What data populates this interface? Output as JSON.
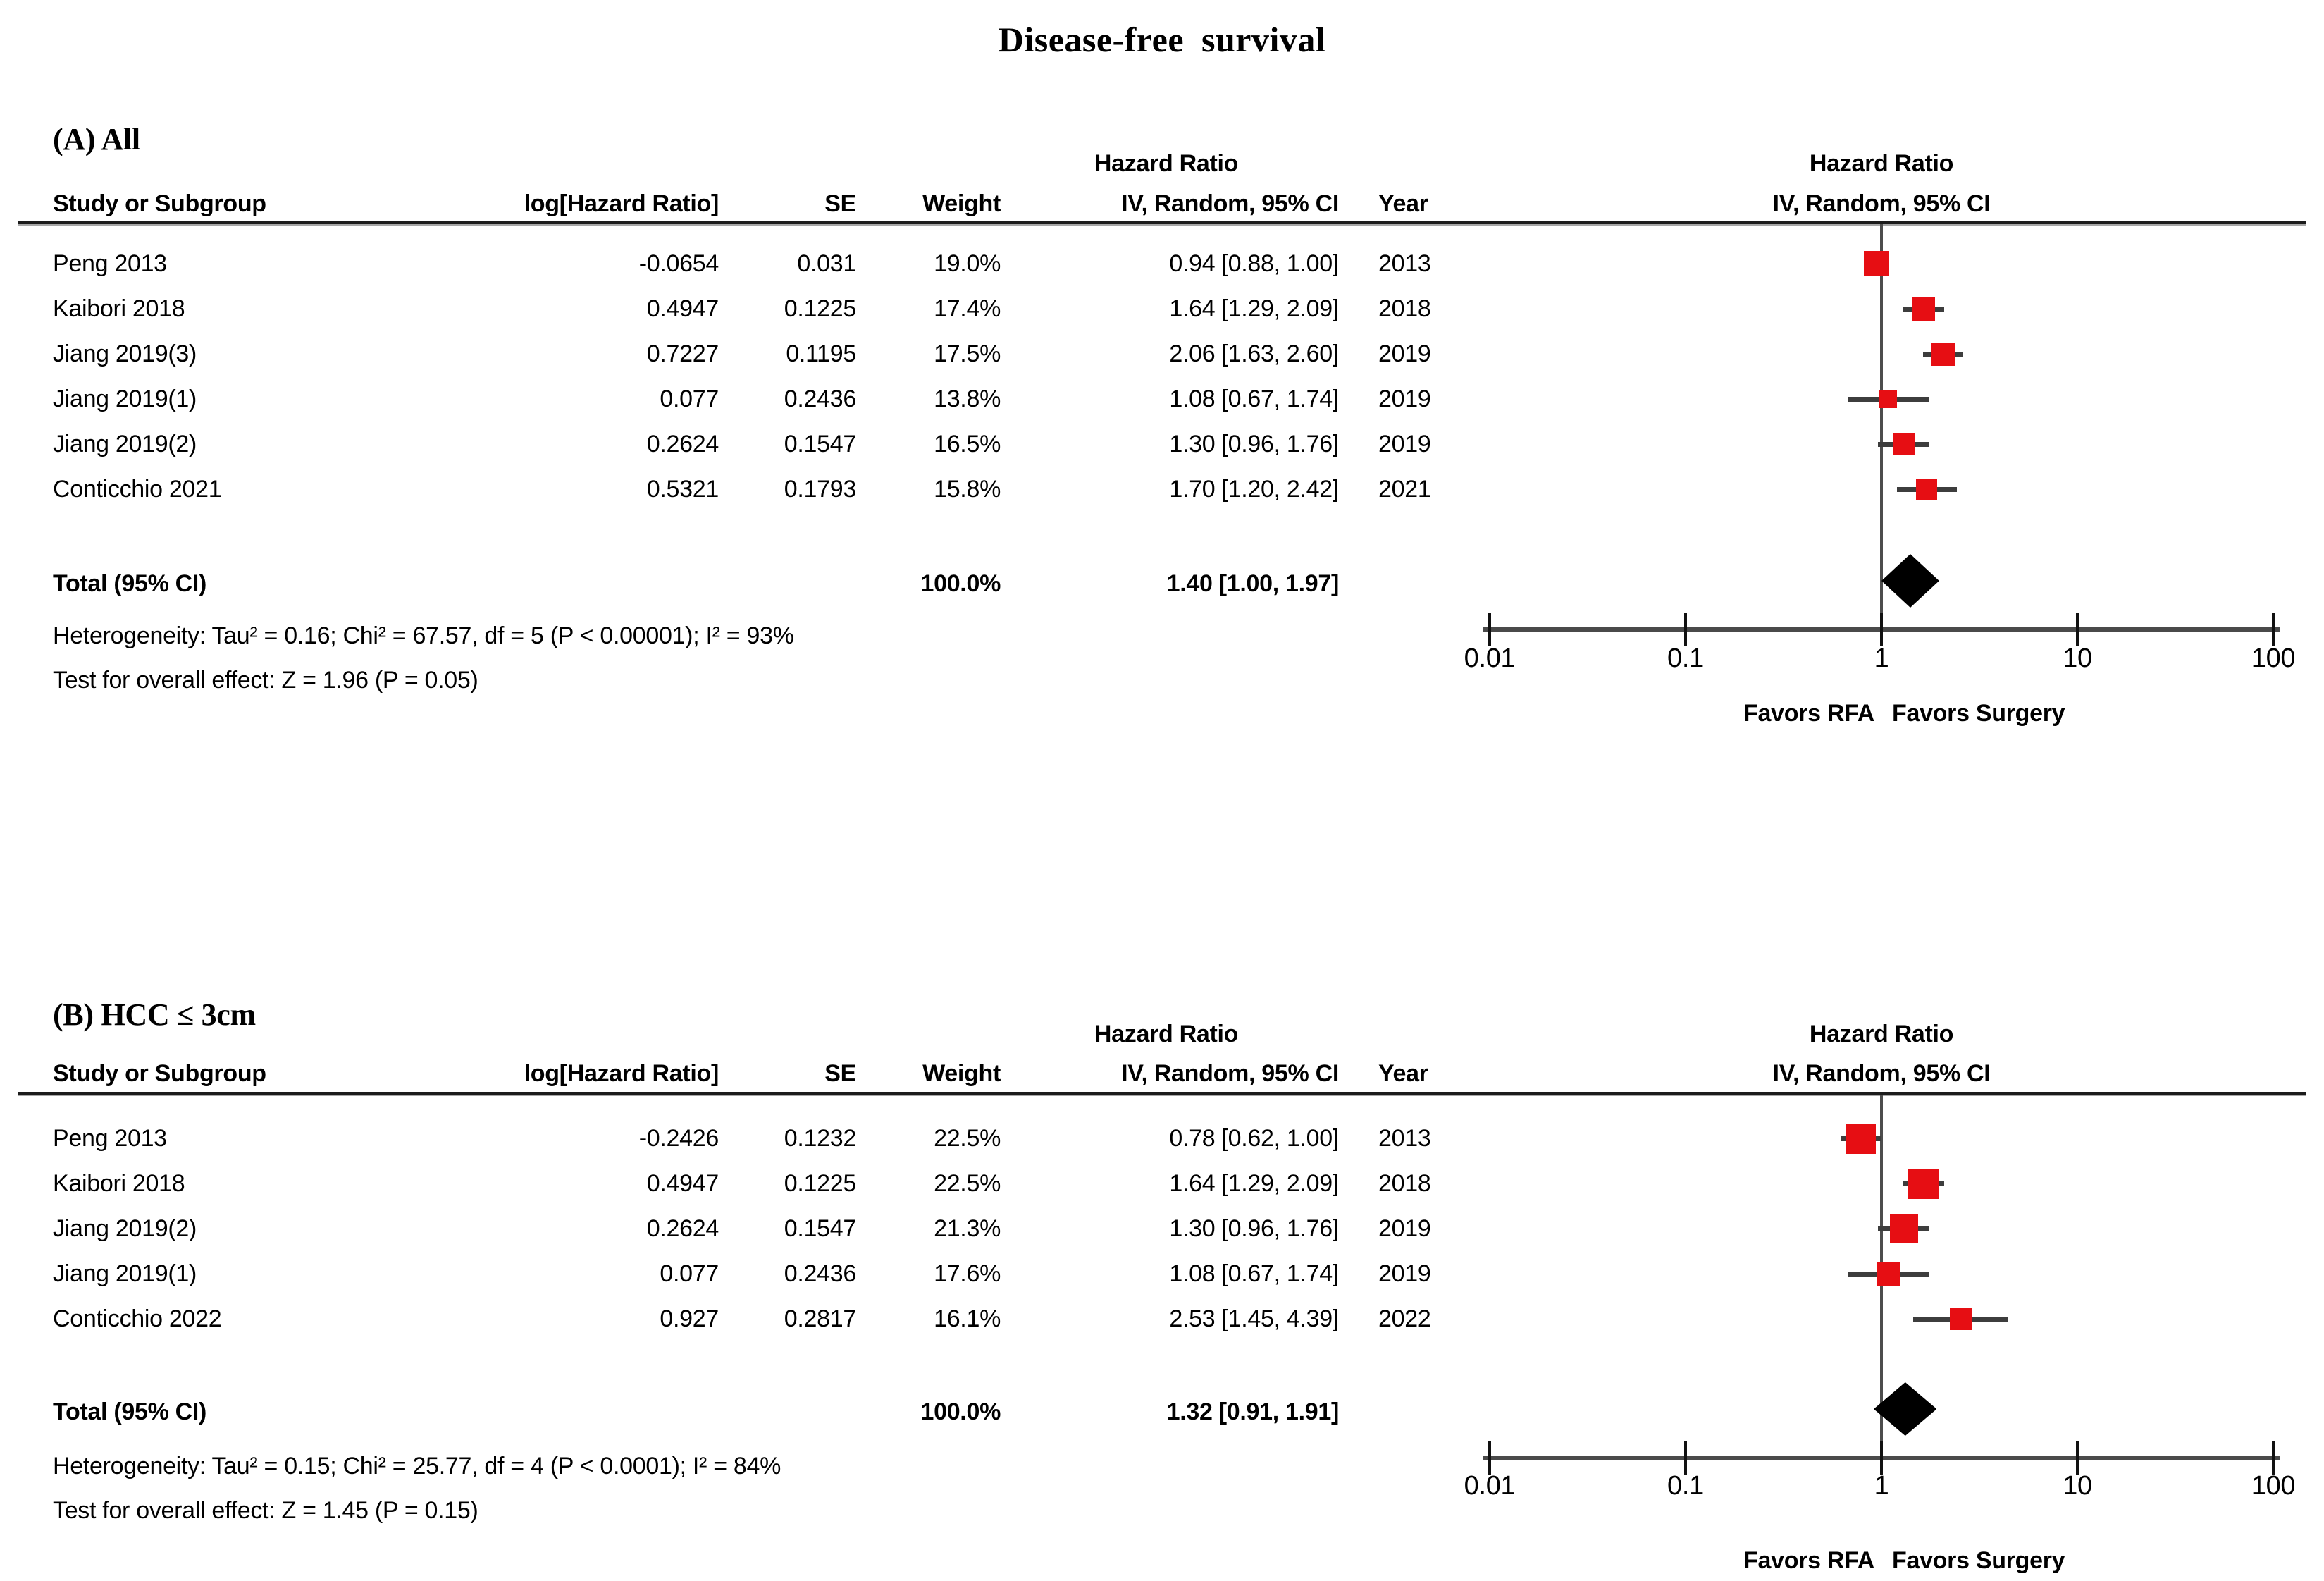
{
  "title": "Disease-free survival",
  "colors": {
    "marker_red": "#e60e13",
    "ci_line": "#3d3d3d",
    "axis": "#4a4a4a",
    "diamond": "#000000",
    "text": "#000000"
  },
  "panels": [
    {
      "label": "(A) All",
      "table_headers": {
        "group": "Hazard Ratio",
        "study": "Study or Subgroup",
        "log_hr": "log[Hazard Ratio]",
        "se": "SE",
        "weight": "Weight",
        "ci": "IV, Random, 95% CI",
        "year": "Year",
        "plot_group": "Hazard Ratio",
        "plot_sub": "IV, Random, 95% CI"
      },
      "studies": [
        {
          "name": "Peng 2013",
          "log_hr": "-0.0654",
          "se": "0.031",
          "weight": "19.0%",
          "ci_text": "0.94 [0.88, 1.00]",
          "year": "2013"
        },
        {
          "name": "Kaibori 2018",
          "log_hr": "0.4947",
          "se": "0.1225",
          "weight": "17.4%",
          "ci_text": "1.64 [1.29, 2.09]",
          "year": "2018"
        },
        {
          "name": "Jiang 2019(3)",
          "log_hr": "0.7227",
          "se": "0.1195",
          "weight": "17.5%",
          "ci_text": "2.06 [1.63, 2.60]",
          "year": "2019"
        },
        {
          "name": "Jiang 2019(1)",
          "log_hr": "0.077",
          "se": "0.2436",
          "weight": "13.8%",
          "ci_text": "1.08 [0.67, 1.74]",
          "year": "2019"
        },
        {
          "name": "Jiang 2019(2)",
          "log_hr": "0.2624",
          "se": "0.1547",
          "weight": "16.5%",
          "ci_text": "1.30 [0.96, 1.76]",
          "year": "2019"
        },
        {
          "name": "Conticchio 2021",
          "log_hr": "0.5321",
          "se": "0.1793",
          "weight": "15.8%",
          "ci_text": "1.70 [1.20, 2.42]",
          "year": "2021"
        }
      ],
      "total": {
        "label": "Total (95% CI)",
        "weight": "100.0%",
        "ci_text": "1.40 [1.00, 1.97]"
      },
      "heterogeneity": "Heterogeneity: Tau² = 0.16; Chi² = 67.57, df = 5 (P < 0.00001); I² = 93%",
      "overall_effect": "Test for overall effect: Z = 1.96 (P = 0.05)",
      "axis_ticks": [
        "0.01",
        "0.1",
        "1",
        "10",
        "100"
      ],
      "favors_left": "Favors RFA",
      "favors_right": "Favors Surgery"
    },
    {
      "label": "(B) HCC ≤ 3cm",
      "table_headers": {
        "group": "Hazard Ratio",
        "study": "Study or Subgroup",
        "log_hr": "log[Hazard Ratio]",
        "se": "SE",
        "weight": "Weight",
        "ci": "IV, Random, 95% CI",
        "year": "Year",
        "plot_group": "Hazard Ratio",
        "plot_sub": "IV, Random, 95% CI"
      },
      "studies": [
        {
          "name": "Peng 2013",
          "log_hr": "-0.2426",
          "se": "0.1232",
          "weight": "22.5%",
          "ci_text": "0.78 [0.62, 1.00]",
          "year": "2013"
        },
        {
          "name": "Kaibori 2018",
          "log_hr": "0.4947",
          "se": "0.1225",
          "weight": "22.5%",
          "ci_text": "1.64 [1.29, 2.09]",
          "year": "2018"
        },
        {
          "name": "Jiang 2019(2)",
          "log_hr": "0.2624",
          "se": "0.1547",
          "weight": "21.3%",
          "ci_text": "1.30 [0.96, 1.76]",
          "year": "2019"
        },
        {
          "name": "Jiang 2019(1)",
          "log_hr": "0.077",
          "se": "0.2436",
          "weight": "17.6%",
          "ci_text": "1.08 [0.67, 1.74]",
          "year": "2019"
        },
        {
          "name": "Conticchio 2022",
          "log_hr": "0.927",
          "se": "0.2817",
          "weight": "16.1%",
          "ci_text": "2.53 [1.45, 4.39]",
          "year": "2022"
        }
      ],
      "total": {
        "label": "Total (95% CI)",
        "weight": "100.0%",
        "ci_text": "1.32 [0.91, 1.91]"
      },
      "heterogeneity": "Heterogeneity: Tau² = 0.15; Chi² = 25.77, df = 4 (P < 0.0001); I² = 84%",
      "overall_effect": "Test for overall effect: Z = 1.45 (P = 0.15)",
      "axis_ticks": [
        "0.01",
        "0.1",
        "1",
        "10",
        "100"
      ],
      "favors_left": "Favors RFA",
      "favors_right": "Favors Surgery"
    }
  ],
  "chart_data": [
    {
      "type": "scatter",
      "variant": "forest_plot",
      "title": "(A) All",
      "x_scale": "log10",
      "x_ticks": [
        0.01,
        0.1,
        1,
        10,
        100
      ],
      "xlim": [
        0.01,
        100
      ],
      "no_effect_line": 1,
      "axis_label_left": "Favors RFA",
      "axis_label_right": "Favors Surgery",
      "studies": [
        {
          "label": "Peng 2013",
          "log_hr": -0.0654,
          "se": 0.031,
          "weight_pct": 19.0,
          "hr": 0.94,
          "ci": [
            0.88,
            1.0
          ],
          "year": 2013
        },
        {
          "label": "Kaibori 2018",
          "log_hr": 0.4947,
          "se": 0.1225,
          "weight_pct": 17.4,
          "hr": 1.64,
          "ci": [
            1.29,
            2.09
          ],
          "year": 2018
        },
        {
          "label": "Jiang 2019(3)",
          "log_hr": 0.7227,
          "se": 0.1195,
          "weight_pct": 17.5,
          "hr": 2.06,
          "ci": [
            1.63,
            2.6
          ],
          "year": 2019
        },
        {
          "label": "Jiang 2019(1)",
          "log_hr": 0.077,
          "se": 0.2436,
          "weight_pct": 13.8,
          "hr": 1.08,
          "ci": [
            0.67,
            1.74
          ],
          "year": 2019
        },
        {
          "label": "Jiang 2019(2)",
          "log_hr": 0.2624,
          "se": 0.1547,
          "weight_pct": 16.5,
          "hr": 1.3,
          "ci": [
            0.96,
            1.76
          ],
          "year": 2019
        },
        {
          "label": "Conticchio 2021",
          "log_hr": 0.5321,
          "se": 0.1793,
          "weight_pct": 15.8,
          "hr": 1.7,
          "ci": [
            1.2,
            2.42
          ],
          "year": 2021
        }
      ],
      "total": {
        "label": "Total (95% CI)",
        "weight_pct": 100.0,
        "hr": 1.4,
        "ci": [
          1.0,
          1.97
        ]
      },
      "heterogeneity": {
        "tau2": 0.16,
        "chi2": 67.57,
        "df": 5,
        "p": "< 0.00001",
        "i2_pct": 93
      },
      "overall_effect": {
        "z": 1.96,
        "p": "= 0.05"
      }
    },
    {
      "type": "scatter",
      "variant": "forest_plot",
      "title": "(B) HCC ≤ 3cm",
      "x_scale": "log10",
      "x_ticks": [
        0.01,
        0.1,
        1,
        10,
        100
      ],
      "xlim": [
        0.01,
        100
      ],
      "no_effect_line": 1,
      "axis_label_left": "Favors RFA",
      "axis_label_right": "Favors Surgery",
      "studies": [
        {
          "label": "Peng 2013",
          "log_hr": -0.2426,
          "se": 0.1232,
          "weight_pct": 22.5,
          "hr": 0.78,
          "ci": [
            0.62,
            1.0
          ],
          "year": 2013
        },
        {
          "label": "Kaibori 2018",
          "log_hr": 0.4947,
          "se": 0.1225,
          "weight_pct": 22.5,
          "hr": 1.64,
          "ci": [
            1.29,
            2.09
          ],
          "year": 2018
        },
        {
          "label": "Jiang 2019(2)",
          "log_hr": 0.2624,
          "se": 0.1547,
          "weight_pct": 21.3,
          "hr": 1.3,
          "ci": [
            0.96,
            1.76
          ],
          "year": 2019
        },
        {
          "label": "Jiang 2019(1)",
          "log_hr": 0.077,
          "se": 0.2436,
          "weight_pct": 17.6,
          "hr": 1.08,
          "ci": [
            0.67,
            1.74
          ],
          "year": 2019
        },
        {
          "label": "Conticchio 2022",
          "log_hr": 0.927,
          "se": 0.2817,
          "weight_pct": 16.1,
          "hr": 2.53,
          "ci": [
            1.45,
            4.39
          ],
          "year": 2022
        }
      ],
      "total": {
        "label": "Total (95% CI)",
        "weight_pct": 100.0,
        "hr": 1.32,
        "ci": [
          0.91,
          1.91
        ]
      },
      "heterogeneity": {
        "tau2": 0.15,
        "chi2": 25.77,
        "df": 4,
        "p": "< 0.0001",
        "i2_pct": 84
      },
      "overall_effect": {
        "z": 1.45,
        "p": "= 0.15"
      }
    }
  ]
}
